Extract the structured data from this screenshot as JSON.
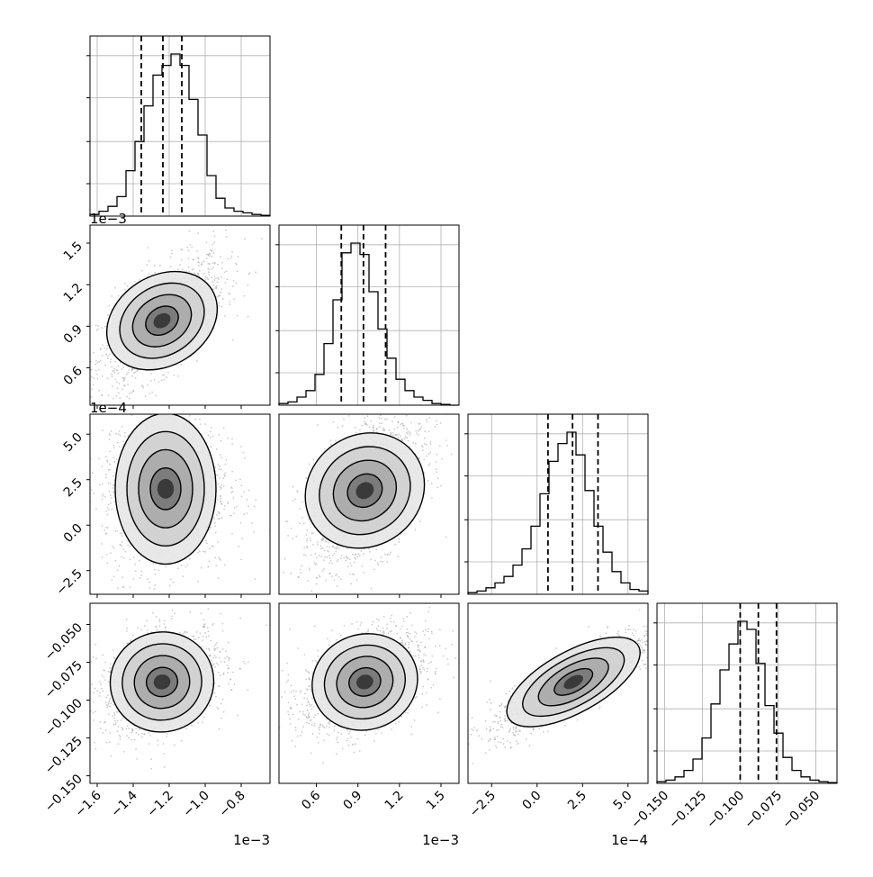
{
  "chart_data": {
    "type": "corner",
    "parameters": [
      {
        "range": [
          -1.64,
          -0.64
        ],
        "ticks": [
          -1.6,
          -1.4,
          -1.2,
          -1.0,
          -0.8
        ],
        "tick_labels": [
          "−1.6",
          "−1.4",
          "−1.2",
          "−1.0",
          "−0.8"
        ],
        "offset_label": "1e−3",
        "quantiles": [
          -1.355,
          -1.235,
          -1.13
        ],
        "hist_peak": -1.22
      },
      {
        "range": [
          0.33,
          1.63
        ],
        "ticks": [
          0.6,
          0.9,
          1.2,
          1.5
        ],
        "tick_labels": [
          "0.6",
          "0.9",
          "1.2",
          "1.5"
        ],
        "offset_label": "1e−3",
        "quantiles": [
          0.78,
          0.94,
          1.1
        ],
        "hist_peak": 0.96
      },
      {
        "range": [
          -3.8,
          6.1
        ],
        "ticks": [
          -2.5,
          0.0,
          2.5,
          5.0
        ],
        "tick_labels": [
          "−2.5",
          "0.0",
          "2.5",
          "5.0"
        ],
        "offset_label": "1e−4",
        "quantiles": [
          0.6,
          1.95,
          3.35
        ],
        "hist_peak": 2.4
      },
      {
        "range": [
          -0.155,
          -0.036
        ],
        "ticks": [
          -0.15,
          -0.125,
          -0.1,
          -0.075,
          -0.05
        ],
        "tick_labels": [
          "−0.150",
          "−0.125",
          "−0.100",
          "−0.075",
          "−0.050"
        ],
        "offset_label": "",
        "quantiles": [
          -0.1,
          -0.088,
          -0.076
        ],
        "hist_peak": -0.087
      }
    ],
    "histograms": [
      [
        0.01,
        0.03,
        0.06,
        0.12,
        0.28,
        0.46,
        0.68,
        0.87,
        0.93,
        1.0,
        0.93,
        0.72,
        0.5,
        0.25,
        0.11,
        0.05,
        0.03,
        0.02,
        0.01,
        0.005
      ],
      [
        0.01,
        0.02,
        0.05,
        0.09,
        0.19,
        0.38,
        0.65,
        0.94,
        1.0,
        0.93,
        0.7,
        0.47,
        0.29,
        0.16,
        0.09,
        0.05,
        0.03,
        0.01,
        0.005,
        0.0
      ],
      [
        0.01,
        0.02,
        0.04,
        0.07,
        0.11,
        0.18,
        0.28,
        0.42,
        0.62,
        0.82,
        0.93,
        1.0,
        0.86,
        0.64,
        0.42,
        0.26,
        0.14,
        0.07,
        0.03,
        0.02
      ],
      [
        0.01,
        0.02,
        0.04,
        0.08,
        0.15,
        0.28,
        0.49,
        0.7,
        0.86,
        1.0,
        0.95,
        0.74,
        0.48,
        0.31,
        0.16,
        0.08,
        0.04,
        0.02,
        0.01,
        0.005
      ]
    ],
    "pair_means": {
      "1-0": [
        -1.24,
        0.94
      ],
      "2-0": [
        -1.22,
        2.0
      ],
      "2-1": [
        0.95,
        1.9
      ],
      "3-0": [
        -1.24,
        -0.088
      ],
      "3-1": [
        0.95,
        -0.088
      ],
      "3-2": [
        2.0,
        -0.088
      ]
    },
    "pair_correlation": {
      "1-0": 0.62,
      "2-0": 0.0,
      "2-1": 0.55,
      "3-0": 0.3,
      "3-1": 0.4,
      "3-2": 0.87
    },
    "pair_spread": {
      "1-0": [
        0.13,
        0.17
      ],
      "2-0": [
        0.13,
        1.7
      ],
      "2-1": [
        0.17,
        1.7
      ],
      "3-0": [
        0.13,
        0.013
      ],
      "3-1": [
        0.17,
        0.013
      ],
      "3-2": [
        1.7,
        0.013
      ]
    },
    "grid": true,
    "contour_levels": 4,
    "colors": {
      "axis": "#000000",
      "grid": "#b0b0b0",
      "scatter": "#9a9a9a",
      "line": "#000000"
    }
  }
}
